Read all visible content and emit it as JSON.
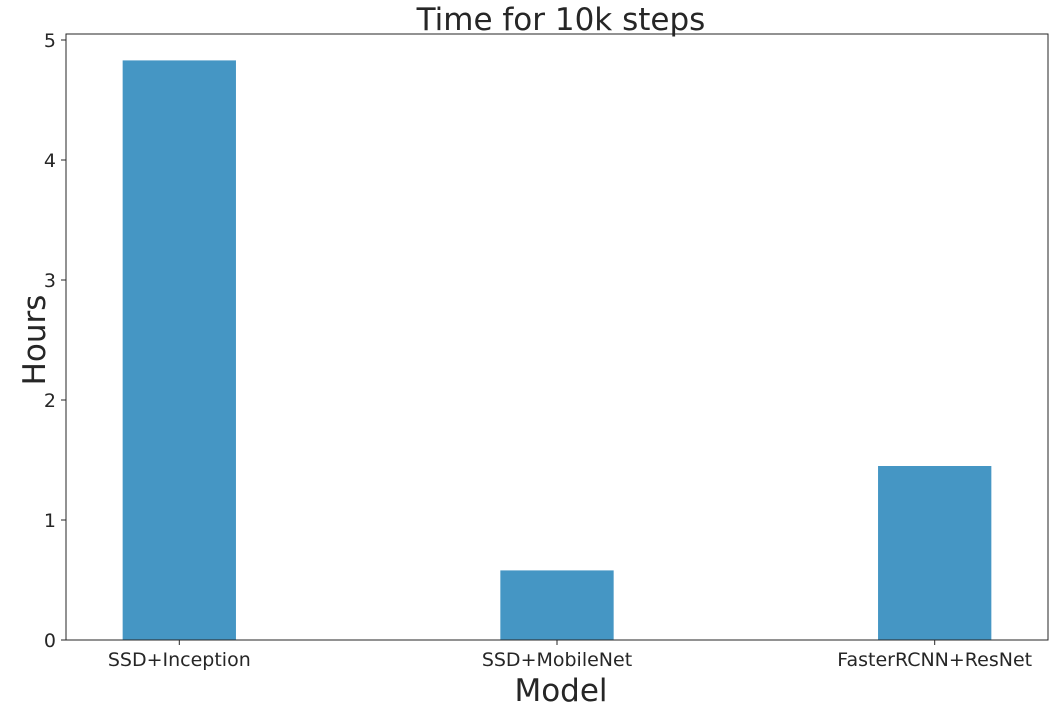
{
  "chart_data": {
    "type": "bar",
    "title": "Time for 10k steps",
    "xlabel": "Model",
    "ylabel": "Hours",
    "categories": [
      "SSD+Inception",
      "SSD+MobileNet",
      "FasterRCNN+ResNet"
    ],
    "values": [
      4.83,
      0.58,
      1.45
    ],
    "ylim": [
      0,
      5.05
    ],
    "yticks": [
      "0",
      "1",
      "2",
      "3",
      "4",
      "5"
    ],
    "grid": false,
    "bar_color": "#4596c4",
    "axis_color": "#262626"
  }
}
